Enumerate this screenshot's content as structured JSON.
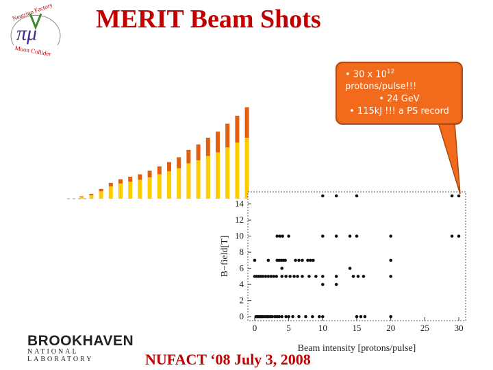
{
  "slide": {
    "title": "MERIT Beam Shots",
    "footer": "NUFACT ‘08 July 3, 2008"
  },
  "logo_left": {
    "top_text": "Neutrino Factory",
    "bottom_text": "Muon Collider",
    "symbol": "πμ"
  },
  "logo_bnl": {
    "name": "BROOKHAVEN",
    "subtitle": "NATIONAL LABORATORY"
  },
  "callout": {
    "line1_prefix": "• 30 x 10",
    "line1_sup": "12",
    "line2": "protons/pulse!!!",
    "line3": "• 24 GeV",
    "line4": "• 115kJ !!! a PS record",
    "fill_color": "#f26a1b"
  },
  "chart_data": [
    {
      "type": "bar",
      "stacked": true,
      "colors": [
        "#ffcc00",
        "#e06010"
      ],
      "values_yellow": [
        0,
        0.3,
        0.6,
        1.2,
        2.0,
        2.5,
        2.8,
        3.1,
        3.5,
        4.0,
        4.5,
        5.0,
        5.8,
        6.3,
        7.0,
        7.6,
        8.4,
        9.2,
        10.0
      ],
      "values_orange": [
        0,
        0.1,
        0.2,
        0.4,
        0.6,
        0.7,
        0.8,
        0.9,
        1.1,
        1.3,
        1.5,
        1.8,
        2.2,
        2.6,
        3.0,
        3.4,
        3.9,
        4.4,
        5.0
      ]
    },
    {
      "type": "scatter",
      "xlabel": "Beam intensity [protons/pulse]",
      "ylabel": "B−field[T]",
      "xlim": [
        -1,
        31
      ],
      "ylim": [
        -0.5,
        15.5
      ],
      "xticks": [
        0,
        5,
        10,
        15,
        20,
        25,
        30
      ],
      "yticks": [
        0,
        2,
        4,
        6,
        8,
        10,
        12,
        14
      ],
      "points": [
        [
          0.2,
          0
        ],
        [
          0.4,
          0
        ],
        [
          0.6,
          0
        ],
        [
          0.8,
          0
        ],
        [
          1.0,
          0
        ],
        [
          1.2,
          0
        ],
        [
          1.5,
          0
        ],
        [
          1.8,
          0
        ],
        [
          2.0,
          0
        ],
        [
          2.3,
          0
        ],
        [
          2.6,
          0
        ],
        [
          3.0,
          0
        ],
        [
          3.3,
          0
        ],
        [
          3.6,
          0
        ],
        [
          4.0,
          0
        ],
        [
          4.6,
          0
        ],
        [
          5.0,
          0
        ],
        [
          5.6,
          0
        ],
        [
          6.5,
          0
        ],
        [
          7.5,
          0
        ],
        [
          8.5,
          0
        ],
        [
          9.5,
          0
        ],
        [
          10.0,
          0
        ],
        [
          15.0,
          0
        ],
        [
          15.6,
          0
        ],
        [
          16.2,
          0
        ],
        [
          20.0,
          0
        ],
        [
          0,
          5
        ],
        [
          0.3,
          5
        ],
        [
          0.6,
          5
        ],
        [
          0.9,
          5
        ],
        [
          1.2,
          5
        ],
        [
          1.6,
          5
        ],
        [
          2.0,
          5
        ],
        [
          2.4,
          5
        ],
        [
          2.8,
          5
        ],
        [
          3.2,
          5
        ],
        [
          4.0,
          5
        ],
        [
          4.6,
          5
        ],
        [
          5.2,
          5
        ],
        [
          5.8,
          5
        ],
        [
          6.3,
          5
        ],
        [
          7.0,
          5
        ],
        [
          8.0,
          5
        ],
        [
          9.0,
          5
        ],
        [
          10.0,
          5
        ],
        [
          12.0,
          5
        ],
        [
          14.5,
          5
        ],
        [
          15.2,
          5
        ],
        [
          16.0,
          5
        ],
        [
          20.0,
          5
        ],
        [
          0,
          7
        ],
        [
          2.0,
          7
        ],
        [
          3.3,
          7
        ],
        [
          3.6,
          7
        ],
        [
          3.9,
          7
        ],
        [
          4.2,
          7
        ],
        [
          4.5,
          7
        ],
        [
          6.0,
          7
        ],
        [
          6.5,
          7
        ],
        [
          7.0,
          7
        ],
        [
          7.8,
          7
        ],
        [
          8.2,
          7
        ],
        [
          8.6,
          7
        ],
        [
          20.0,
          7
        ],
        [
          3.3,
          10
        ],
        [
          3.7,
          10
        ],
        [
          4.1,
          10
        ],
        [
          5.0,
          10
        ],
        [
          10.0,
          10
        ],
        [
          12.0,
          10
        ],
        [
          14.0,
          10
        ],
        [
          15.0,
          10
        ],
        [
          20.0,
          10
        ],
        [
          29.0,
          10
        ],
        [
          30.0,
          10
        ],
        [
          10.0,
          15
        ],
        [
          12.0,
          15
        ],
        [
          15.0,
          15
        ],
        [
          29.0,
          15
        ],
        [
          30.0,
          15
        ],
        [
          4.0,
          6
        ],
        [
          14.0,
          6
        ],
        [
          10.0,
          4
        ],
        [
          12.0,
          4
        ]
      ]
    }
  ]
}
